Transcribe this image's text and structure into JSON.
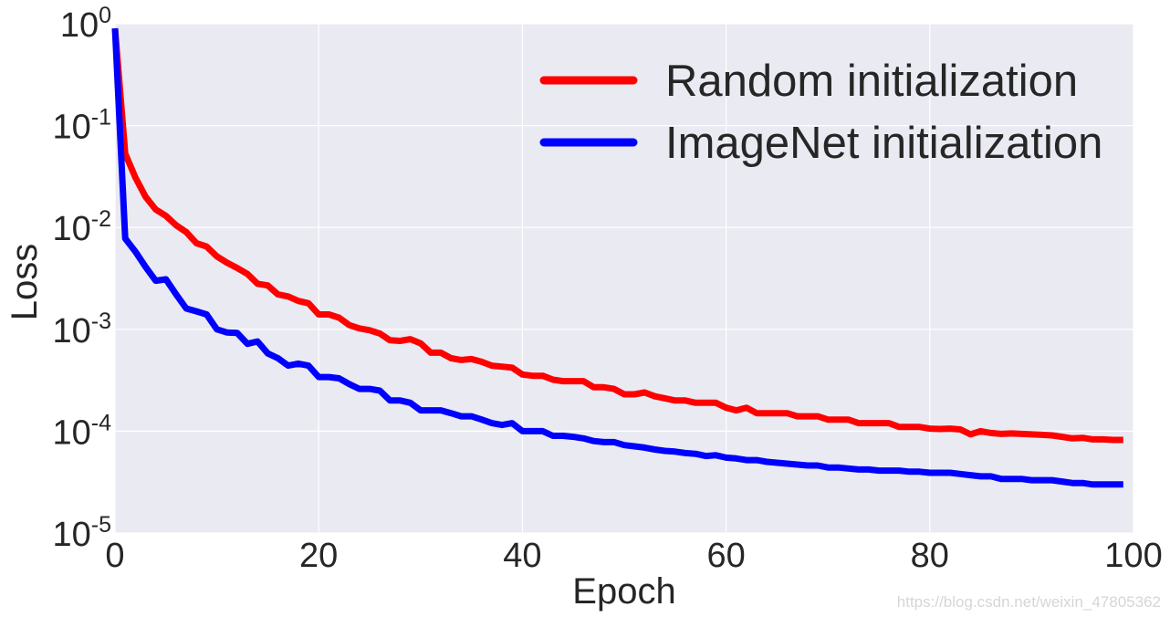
{
  "chart_data": {
    "type": "line",
    "xlabel": "Epoch",
    "ylabel": "Loss",
    "xlim": [
      0,
      100
    ],
    "ylim": [
      1e-05,
      1
    ],
    "yscale": "log",
    "grid": true,
    "legend_position": "top-right",
    "x_ticks": [
      "0",
      "20",
      "40",
      "60",
      "80",
      "100"
    ],
    "y_ticks": [
      {
        "base": "10",
        "exp": "0"
      },
      {
        "base": "10",
        "exp": "-1"
      },
      {
        "base": "10",
        "exp": "-2"
      },
      {
        "base": "10",
        "exp": "-3"
      },
      {
        "base": "10",
        "exp": "-4"
      },
      {
        "base": "10",
        "exp": "-5"
      }
    ],
    "series": [
      {
        "name": "Random initialization",
        "color": "#ff0000",
        "x": [
          0,
          1,
          2,
          3,
          4,
          5,
          6,
          7,
          8,
          9,
          10,
          11,
          12,
          13,
          14,
          15,
          16,
          17,
          18,
          19,
          20,
          21,
          22,
          23,
          24,
          25,
          26,
          27,
          28,
          29,
          30,
          31,
          32,
          33,
          34,
          35,
          36,
          37,
          38,
          39,
          40,
          41,
          42,
          43,
          44,
          45,
          46,
          47,
          48,
          49,
          50,
          51,
          52,
          53,
          54,
          55,
          56,
          57,
          58,
          59,
          60,
          61,
          62,
          63,
          64,
          65,
          66,
          67,
          68,
          69,
          70,
          71,
          72,
          73,
          74,
          75,
          76,
          77,
          78,
          79,
          80,
          81,
          82,
          83,
          84,
          85,
          86,
          87,
          88,
          89,
          90,
          91,
          92,
          93,
          94,
          95,
          96,
          97,
          98,
          99
        ],
        "y": [
          0.9,
          0.053,
          0.031,
          0.02,
          0.015,
          0.013,
          0.0105,
          0.009,
          0.007,
          0.0065,
          0.0052,
          0.0045,
          0.004,
          0.0035,
          0.0028,
          0.0027,
          0.0022,
          0.0021,
          0.0019,
          0.0018,
          0.0014,
          0.0014,
          0.0013,
          0.0011,
          0.00102,
          0.00098,
          0.00091,
          0.00078,
          0.00077,
          0.0008,
          0.00073,
          0.00059,
          0.00059,
          0.00052,
          0.0005,
          0.00051,
          0.00048,
          0.00044,
          0.00043,
          0.00042,
          0.00036,
          0.00035,
          0.00035,
          0.00032,
          0.00031,
          0.00031,
          0.00031,
          0.00027,
          0.00027,
          0.00026,
          0.00023,
          0.00023,
          0.00024,
          0.00022,
          0.00021,
          0.0002,
          0.0002,
          0.00019,
          0.00019,
          0.00019,
          0.00017,
          0.00016,
          0.00017,
          0.00015,
          0.00015,
          0.00015,
          0.00015,
          0.00014,
          0.00014,
          0.00014,
          0.00013,
          0.00013,
          0.00013,
          0.00012,
          0.00012,
          0.00012,
          0.00012,
          0.00011,
          0.00011,
          0.00011,
          0.000106,
          0.000105,
          0.000106,
          0.000104,
          9.3e-05,
          0.0001,
          9.6e-05,
          9.4e-05,
          9.5e-05,
          9.4e-05,
          9.3e-05,
          9.2e-05,
          9.1e-05,
          8.8e-05,
          8.5e-05,
          8.6e-05,
          8.3e-05,
          8.3e-05,
          8.2e-05,
          8.2e-05
        ]
      },
      {
        "name": "ImageNet initialization",
        "color": "#0000ff",
        "x": [
          0,
          1,
          2,
          3,
          4,
          5,
          6,
          7,
          8,
          9,
          10,
          11,
          12,
          13,
          14,
          15,
          16,
          17,
          18,
          19,
          20,
          21,
          22,
          23,
          24,
          25,
          26,
          27,
          28,
          29,
          30,
          31,
          32,
          33,
          34,
          35,
          36,
          37,
          38,
          39,
          40,
          41,
          42,
          43,
          44,
          45,
          46,
          47,
          48,
          49,
          50,
          51,
          52,
          53,
          54,
          55,
          56,
          57,
          58,
          59,
          60,
          61,
          62,
          63,
          64,
          65,
          66,
          67,
          68,
          69,
          70,
          71,
          72,
          73,
          74,
          75,
          76,
          77,
          78,
          79,
          80,
          81,
          82,
          83,
          84,
          85,
          86,
          87,
          88,
          89,
          90,
          91,
          92,
          93,
          94,
          95,
          96,
          97,
          98,
          99
        ],
        "y": [
          0.9,
          0.0078,
          0.0058,
          0.0041,
          0.003,
          0.0031,
          0.0022,
          0.0016,
          0.0015,
          0.0014,
          0.001,
          0.00093,
          0.00092,
          0.00072,
          0.00076,
          0.00058,
          0.00052,
          0.00044,
          0.00046,
          0.00044,
          0.00034,
          0.00034,
          0.00033,
          0.00029,
          0.00026,
          0.00026,
          0.00025,
          0.0002,
          0.0002,
          0.00019,
          0.00016,
          0.00016,
          0.00016,
          0.00015,
          0.00014,
          0.00014,
          0.00013,
          0.00012,
          0.000115,
          0.00012,
          0.0001,
          0.0001,
          0.0001,
          9e-05,
          9e-05,
          8.8e-05,
          8.5e-05,
          8e-05,
          7.8e-05,
          7.8e-05,
          7.3e-05,
          7.1e-05,
          6.9e-05,
          6.6e-05,
          6.4e-05,
          6.3e-05,
          6.1e-05,
          6e-05,
          5.7e-05,
          5.8e-05,
          5.5e-05,
          5.4e-05,
          5.2e-05,
          5.2e-05,
          5e-05,
          4.9e-05,
          4.8e-05,
          4.7e-05,
          4.6e-05,
          4.6e-05,
          4.4e-05,
          4.4e-05,
          4.3e-05,
          4.2e-05,
          4.2e-05,
          4.1e-05,
          4.1e-05,
          4.1e-05,
          4e-05,
          4e-05,
          3.9e-05,
          3.9e-05,
          3.9e-05,
          3.8e-05,
          3.7e-05,
          3.6e-05,
          3.6e-05,
          3.4e-05,
          3.4e-05,
          3.4e-05,
          3.3e-05,
          3.3e-05,
          3.3e-05,
          3.2e-05,
          3.1e-05,
          3.1e-05,
          3e-05,
          3e-05,
          3e-05,
          3e-05
        ]
      }
    ]
  },
  "watermark": "https://blog.csdn.net/weixin_47805362"
}
